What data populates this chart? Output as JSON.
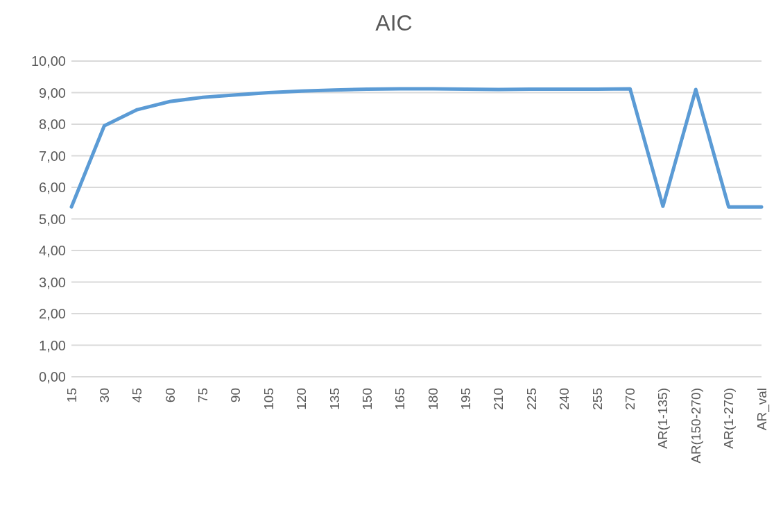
{
  "chart_data": {
    "type": "line",
    "title": "AIC",
    "categories": [
      "15",
      "30",
      "45",
      "60",
      "75",
      "90",
      "105",
      "120",
      "135",
      "150",
      "165",
      "180",
      "195",
      "210",
      "225",
      "240",
      "255",
      "270",
      "AR(1-135)",
      "AR(150-270)",
      "AR(1-270)",
      "AR_val"
    ],
    "series": [
      {
        "color": "#5b9bd5",
        "values": [
          5.38,
          7.95,
          8.46,
          8.72,
          8.85,
          8.93,
          9.0,
          9.05,
          9.08,
          9.11,
          9.12,
          9.12,
          9.11,
          9.1,
          9.11,
          9.11,
          9.11,
          9.12,
          5.4,
          9.1,
          5.38,
          5.38
        ]
      }
    ],
    "ylim": [
      0,
      10
    ],
    "yticks": [
      {
        "value": 0,
        "label": "0,00"
      },
      {
        "value": 1,
        "label": "1,00"
      },
      {
        "value": 2,
        "label": "2,00"
      },
      {
        "value": 3,
        "label": "3,00"
      },
      {
        "value": 4,
        "label": "4,00"
      },
      {
        "value": 5,
        "label": "5,00"
      },
      {
        "value": 6,
        "label": "6,00"
      },
      {
        "value": 7,
        "label": "7,00"
      },
      {
        "value": 8,
        "label": "8,00"
      },
      {
        "value": 9,
        "label": "9,00"
      },
      {
        "value": 10,
        "label": "10,00"
      }
    ],
    "grid": "y",
    "marker": "none",
    "line_style": "solid",
    "legend": false
  }
}
